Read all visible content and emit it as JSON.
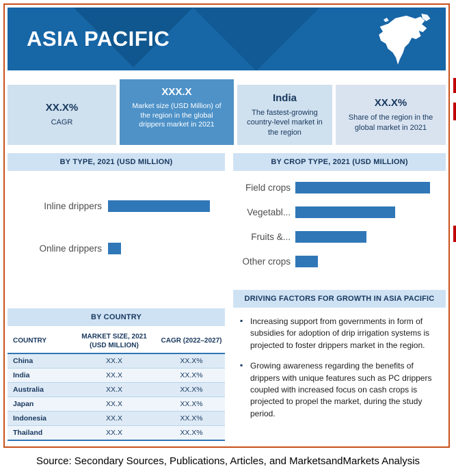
{
  "header": {
    "title": "ASIA PACIFIC",
    "map_icon": "north-america-map-icon"
  },
  "colors": {
    "header_bg": "#1766a6",
    "bar_fill": "#3077b8",
    "frame_border": "#c85018",
    "panel_light": "#cfe0ee",
    "panel_medium": "#4e92c8",
    "panel_lighter": "#d9e3f0",
    "section_header_bg": "#cfe2f4",
    "dark_navy_text": "#17375d"
  },
  "stats": [
    {
      "value": "XX.X%",
      "label": "CAGR"
    },
    {
      "value": "XXX.X",
      "label": "Market size (USD Million) of the region in the global drippers market in 2021"
    },
    {
      "value": "India",
      "label": "The fastest-growing country-level market in the region"
    },
    {
      "value": "XX.X%",
      "label": "Share of the region in the global market in 2021"
    }
  ],
  "sections": {
    "by_type_header": "BY TYPE, 2021 (USD MILLION)",
    "by_crop_header": "BY CROP TYPE, 2021 (USD MILLION)",
    "by_country_header": "BY COUNTRY",
    "driving_header": "DRIVING FACTORS FOR GROWTH IN ASIA PACIFIC"
  },
  "by_country": {
    "columns": [
      "COUNTRY",
      "MARKET SIZE, 2021 (USD MILLION)",
      "CAGR (2022–2027)"
    ],
    "rows": [
      [
        "China",
        "XX.X",
        "XX.X%"
      ],
      [
        "India",
        "XX.X",
        "XX.X%"
      ],
      [
        "Australia",
        "XX.X",
        "XX.X%"
      ],
      [
        "Japan",
        "XX.X",
        "XX.X%"
      ],
      [
        "Indonesia",
        "XX.X",
        "XX.X%"
      ],
      [
        "Thailand",
        "XX.X",
        "XX.X%"
      ]
    ]
  },
  "driving_factors": {
    "bullets": [
      "Increasing support from governments in form of subsidies for adoption of drip irrigation systems is projected to foster drippers market in the region.",
      "Growing awareness regarding the benefits of drippers with unique features such as PC drippers coupled with increased focus on cash crops is projected to propel the market, during the study period."
    ]
  },
  "chart_data": [
    {
      "type": "bar",
      "orientation": "horizontal",
      "title": "BY TYPE, 2021 (USD MILLION)",
      "categories": [
        "Inline drippers",
        "Online drippers"
      ],
      "values": [
        100,
        13
      ],
      "value_scale": "relative percent of longest bar; numeric values masked as XX.X in source graphic",
      "grid": false,
      "legend": false
    },
    {
      "type": "bar",
      "orientation": "horizontal",
      "title": "BY CROP TYPE, 2021 (USD MILLION)",
      "categories": [
        "Field crops",
        "Vegetabl...",
        "Fruits &...",
        "Other crops"
      ],
      "values": [
        100,
        74,
        53,
        17
      ],
      "value_scale": "relative percent of longest bar; numeric values masked in source graphic",
      "grid": false,
      "legend": false
    }
  ],
  "footer": {
    "source_text": "Source: Secondary Sources, Publications, Articles, and MarketsandMarkets Analysis"
  }
}
